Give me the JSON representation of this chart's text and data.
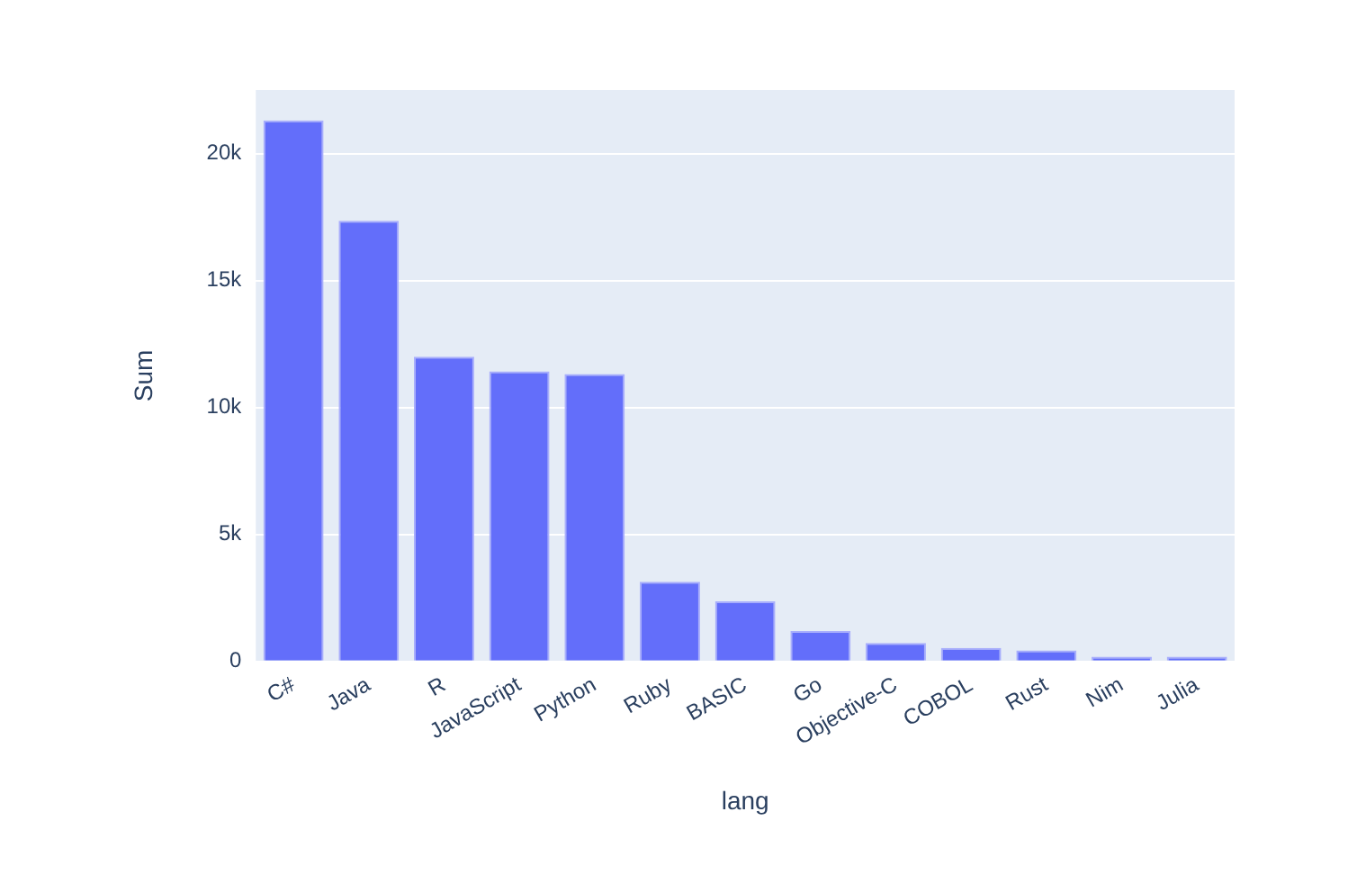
{
  "chart_data": {
    "type": "bar",
    "xlabel": "lang",
    "ylabel": "Sum",
    "categories": [
      "C#",
      "Java",
      "R",
      "JavaScript",
      "Python",
      "Ruby",
      "BASIC",
      "Go",
      "Objective-C",
      "COBOL",
      "Rust",
      "Nim",
      "Julia"
    ],
    "values": [
      21300,
      17350,
      12000,
      11420,
      11320,
      3140,
      2370,
      1200,
      730,
      530,
      435,
      190,
      190
    ],
    "color": "#636efa",
    "ylim": [
      0,
      22500
    ],
    "yticks": [
      {
        "value": 0,
        "label": "0"
      },
      {
        "value": 5000,
        "label": "5k"
      },
      {
        "value": 10000,
        "label": "10k"
      },
      {
        "value": 15000,
        "label": "15k"
      },
      {
        "value": 20000,
        "label": "20k"
      }
    ],
    "grid": "y",
    "legend": false
  }
}
